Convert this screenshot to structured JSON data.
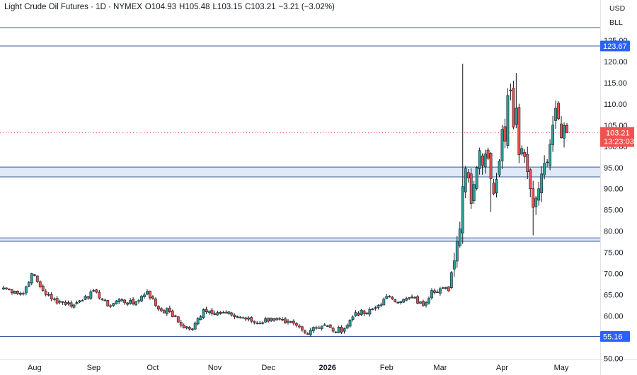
{
  "legend": {
    "symbol": "Light Crude Oil Futures · 1D · NYMEX",
    "open": "O104.93",
    "high": "H105.48",
    "low": "L103.15",
    "close": "C103.21",
    "change": "−3.21 (−3.02%)"
  },
  "price_axis": {
    "currency": "USD",
    "unit": "BLL"
  },
  "colors": {
    "up": "#26a69a",
    "down": "#ef5350",
    "body_stroke": "#131722",
    "level_line": "#3d5a99",
    "zone_fill": "#dfe8f7",
    "level_label_bg": "#2962ff",
    "price_label_bg": "#ef5350"
  },
  "chart_data": {
    "type": "candlestick",
    "title": "Light Crude Oil Futures · 1D · NYMEX",
    "ylim": [
      48,
      131
    ],
    "y_ticks": [
      50,
      55,
      60,
      65,
      70,
      75,
      80,
      85,
      90,
      95,
      100,
      105,
      110,
      115,
      120,
      125
    ],
    "y_tick_labels": [
      "50.00",
      "55.00",
      "60.00",
      "65.00",
      "70.00",
      "75.00",
      "80.00",
      "85.00",
      "90.00",
      "95.00",
      "100.00",
      "105.00",
      "110.00",
      "115.00",
      "120.00",
      "125.00"
    ],
    "x_ticks": [
      {
        "label": "Aug",
        "index": 11,
        "bold": false
      },
      {
        "label": "Sep",
        "index": 32,
        "bold": false
      },
      {
        "label": "Oct",
        "index": 53,
        "bold": false
      },
      {
        "label": "Nov",
        "index": 75,
        "bold": false
      },
      {
        "label": "Dec",
        "index": 94,
        "bold": false
      },
      {
        "label": "2026",
        "index": 115,
        "bold": true
      },
      {
        "label": "Feb",
        "index": 136,
        "bold": false
      },
      {
        "label": "Mar",
        "index": 155,
        "bold": false
      },
      {
        "label": "Apr",
        "index": 177,
        "bold": false
      },
      {
        "label": "May",
        "index": 198,
        "bold": false
      }
    ],
    "candle_count": 201,
    "levels": [
      {
        "name": "level-123-67",
        "price": 123.67,
        "label": "123.67",
        "labeled": true
      },
      {
        "name": "level-top",
        "price": 128.0,
        "label": "",
        "labeled": false
      },
      {
        "name": "level-55-16",
        "price": 55.16,
        "label": "55.16",
        "labeled": true
      }
    ],
    "zones": [
      {
        "name": "zone-92-95",
        "low": 92.8,
        "high": 95.1
      },
      {
        "name": "zone-77-78",
        "low": 77.6,
        "high": 78.4
      }
    ],
    "last_price": {
      "value": 103.21,
      "label": "103.21",
      "countdown": "13:23:03"
    },
    "anchors": [
      {
        "i": 0,
        "p": 66.6
      },
      {
        "i": 4,
        "p": 65.8
      },
      {
        "i": 7,
        "p": 65.3
      },
      {
        "i": 10,
        "p": 70.0
      },
      {
        "i": 14,
        "p": 66.0
      },
      {
        "i": 17,
        "p": 64.0
      },
      {
        "i": 21,
        "p": 63.2
      },
      {
        "i": 25,
        "p": 62.6
      },
      {
        "i": 29,
        "p": 64.6
      },
      {
        "i": 33,
        "p": 65.6
      },
      {
        "i": 37,
        "p": 62.3
      },
      {
        "i": 41,
        "p": 63.8
      },
      {
        "i": 46,
        "p": 62.8
      },
      {
        "i": 51,
        "p": 65.8
      },
      {
        "i": 55,
        "p": 61.6
      },
      {
        "i": 59,
        "p": 61.0
      },
      {
        "i": 63,
        "p": 57.8
      },
      {
        "i": 67,
        "p": 56.8
      },
      {
        "i": 71,
        "p": 61.5
      },
      {
        "i": 76,
        "p": 60.8
      },
      {
        "i": 81,
        "p": 60.2
      },
      {
        "i": 85,
        "p": 59.6
      },
      {
        "i": 90,
        "p": 58.3
      },
      {
        "i": 95,
        "p": 59.5
      },
      {
        "i": 100,
        "p": 58.3
      },
      {
        "i": 104,
        "p": 57.8
      },
      {
        "i": 107,
        "p": 56.0
      },
      {
        "i": 110,
        "p": 57.3
      },
      {
        "i": 114,
        "p": 57.9
      },
      {
        "i": 117,
        "p": 56.4
      },
      {
        "i": 121,
        "p": 57.0
      },
      {
        "i": 125,
        "p": 60.8
      },
      {
        "i": 129,
        "p": 60.5
      },
      {
        "i": 133,
        "p": 62.5
      },
      {
        "i": 137,
        "p": 64.6
      },
      {
        "i": 141,
        "p": 63.4
      },
      {
        "i": 145,
        "p": 64.3
      },
      {
        "i": 149,
        "p": 62.4
      },
      {
        "i": 152,
        "p": 66.0
      },
      {
        "i": 156,
        "p": 66.5
      },
      {
        "i": 158,
        "p": 65.9
      },
      {
        "i": 159,
        "p": 70.2
      },
      {
        "i": 160,
        "p": 73.0
      },
      {
        "i": 161,
        "p": 77.6
      },
      {
        "i": 162,
        "p": 80.5
      },
      {
        "i": 163,
        "p": 90.5
      },
      {
        "i": 164,
        "p": 94.8
      },
      {
        "i": 165,
        "p": 92.5
      },
      {
        "i": 166,
        "p": 86.5
      },
      {
        "i": 167,
        "p": 91.0
      },
      {
        "i": 168,
        "p": 95.0
      },
      {
        "i": 169,
        "p": 99.0
      },
      {
        "i": 170,
        "p": 95.5
      },
      {
        "i": 171,
        "p": 98.2
      },
      {
        "i": 172,
        "p": 97.2
      },
      {
        "i": 173,
        "p": 92.4
      },
      {
        "i": 174,
        "p": 88.8
      },
      {
        "i": 175,
        "p": 92.2
      },
      {
        "i": 176,
        "p": 96.5
      },
      {
        "i": 177,
        "p": 104.0
      },
      {
        "i": 178,
        "p": 101.2
      },
      {
        "i": 179,
        "p": 112.0
      },
      {
        "i": 180,
        "p": 113.3
      },
      {
        "i": 181,
        "p": 104.5
      },
      {
        "i": 182,
        "p": 109.0
      },
      {
        "i": 183,
        "p": 98.0
      },
      {
        "i": 184,
        "p": 99.5
      },
      {
        "i": 185,
        "p": 97.6
      },
      {
        "i": 186,
        "p": 94.0
      },
      {
        "i": 187,
        "p": 90.0
      },
      {
        "i": 188,
        "p": 85.6
      },
      {
        "i": 189,
        "p": 87.8
      },
      {
        "i": 190,
        "p": 90.0
      },
      {
        "i": 191,
        "p": 93.5
      },
      {
        "i": 192,
        "p": 96.0
      },
      {
        "i": 193,
        "p": 96.2
      },
      {
        "i": 194,
        "p": 100.5
      },
      {
        "i": 195,
        "p": 105.0
      },
      {
        "i": 196,
        "p": 109.0
      },
      {
        "i": 197,
        "p": 106.5
      },
      {
        "i": 198,
        "p": 102.0
      },
      {
        "i": 199,
        "p": 104.9
      },
      {
        "i": 200,
        "p": 103.21
      }
    ],
    "spikes": [
      {
        "i": 163,
        "high": 119.5,
        "low": 77.0
      },
      {
        "i": 182,
        "high": 117.3
      },
      {
        "i": 181,
        "high": 115.5
      },
      {
        "i": 196,
        "high": 110.8
      },
      {
        "i": 188,
        "low": 79.0
      },
      {
        "i": 173,
        "low": 84.5
      }
    ]
  }
}
